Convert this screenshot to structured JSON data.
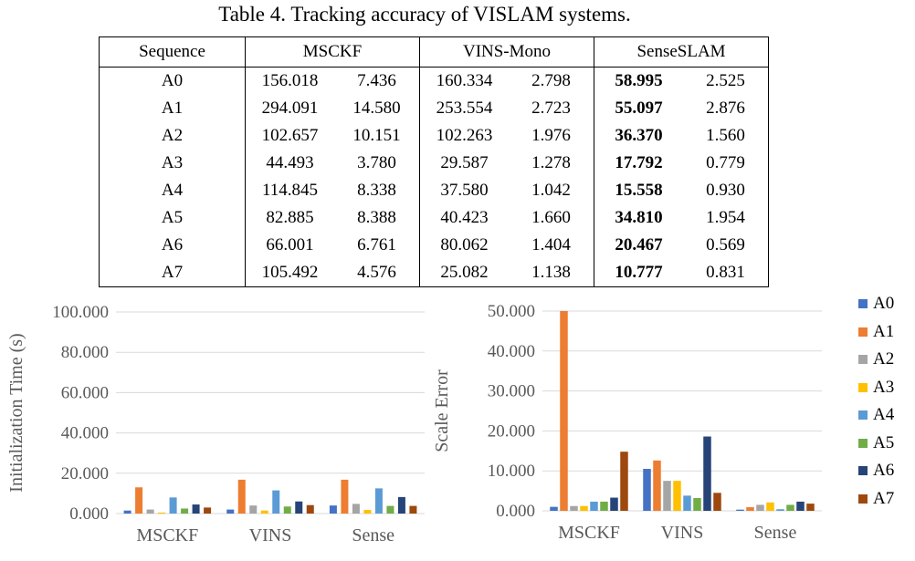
{
  "caption": "Table 4. Tracking accuracy of VISLAM systems.",
  "table": {
    "headers": [
      "Sequence",
      "MSCKF",
      "VINS-Mono",
      "SenseSLAM"
    ],
    "rows": [
      [
        "A0",
        "156.018",
        "7.436",
        "160.334",
        "2.798",
        "58.995",
        "2.525"
      ],
      [
        "A1",
        "294.091",
        "14.580",
        "253.554",
        "2.723",
        "55.097",
        "2.876"
      ],
      [
        "A2",
        "102.657",
        "10.151",
        "102.263",
        "1.976",
        "36.370",
        "1.560"
      ],
      [
        "A3",
        "44.493",
        "3.780",
        "29.587",
        "1.278",
        "17.792",
        "0.779"
      ],
      [
        "A4",
        "114.845",
        "8.338",
        "37.580",
        "1.042",
        "15.558",
        "0.930"
      ],
      [
        "A5",
        "82.885",
        "8.388",
        "40.423",
        "1.660",
        "34.810",
        "1.954"
      ],
      [
        "A6",
        "66.001",
        "6.761",
        "80.062",
        "1.404",
        "20.467",
        "0.569"
      ],
      [
        "A7",
        "105.492",
        "4.576",
        "25.082",
        "1.138",
        "10.777",
        "0.831"
      ]
    ],
    "bold_column_index": 5
  },
  "colors": [
    "#4472C4",
    "#ED7D31",
    "#A5A5A5",
    "#FFC000",
    "#5B9BD5",
    "#70AD47",
    "#264478",
    "#9E480E"
  ],
  "legend": [
    "A0",
    "A1",
    "A2",
    "A3",
    "A4",
    "A5",
    "A6",
    "A7"
  ],
  "chart_data": [
    {
      "type": "bar",
      "ylabel": "Initialization Time (s)",
      "categories": [
        "MSCKF",
        "VINS",
        "Sense"
      ],
      "ylim": [
        0,
        100
      ],
      "yticks": [
        "0.000",
        "20.000",
        "40.000",
        "60.000",
        "80.000",
        "100.000"
      ],
      "series": [
        {
          "name": "A0",
          "values": [
            1.5,
            2.0,
            4.0
          ]
        },
        {
          "name": "A1",
          "values": [
            13.0,
            16.8,
            16.8
          ]
        },
        {
          "name": "A2",
          "values": [
            2.0,
            4.0,
            4.8
          ]
        },
        {
          "name": "A3",
          "values": [
            0.5,
            1.5,
            1.8
          ]
        },
        {
          "name": "A4",
          "values": [
            8.0,
            11.5,
            12.5
          ]
        },
        {
          "name": "A5",
          "values": [
            2.5,
            3.5,
            3.8
          ]
        },
        {
          "name": "A6",
          "values": [
            4.5,
            6.0,
            8.2
          ]
        },
        {
          "name": "A7",
          "values": [
            3.0,
            4.2,
            3.8
          ]
        }
      ],
      "legend": "right"
    },
    {
      "type": "bar",
      "ylabel": "Scale Error",
      "categories": [
        "MSCKF",
        "VINS",
        "Sense"
      ],
      "ylim": [
        0,
        50
      ],
      "yticks": [
        "0.000",
        "10.000",
        "20.000",
        "30.000",
        "40.000",
        "50.000"
      ],
      "series": [
        {
          "name": "A0",
          "values": [
            1.0,
            10.5,
            0.3
          ]
        },
        {
          "name": "A1",
          "values": [
            50.0,
            12.6,
            0.9
          ]
        },
        {
          "name": "A2",
          "values": [
            1.2,
            7.5,
            1.5
          ]
        },
        {
          "name": "A3",
          "values": [
            1.2,
            7.5,
            2.1
          ]
        },
        {
          "name": "A4",
          "values": [
            2.3,
            3.8,
            0.4
          ]
        },
        {
          "name": "A5",
          "values": [
            2.3,
            3.2,
            1.5
          ]
        },
        {
          "name": "A6",
          "values": [
            3.3,
            18.6,
            2.3
          ]
        },
        {
          "name": "A7",
          "values": [
            14.8,
            4.5,
            1.8
          ]
        }
      ],
      "legend": "right"
    }
  ]
}
